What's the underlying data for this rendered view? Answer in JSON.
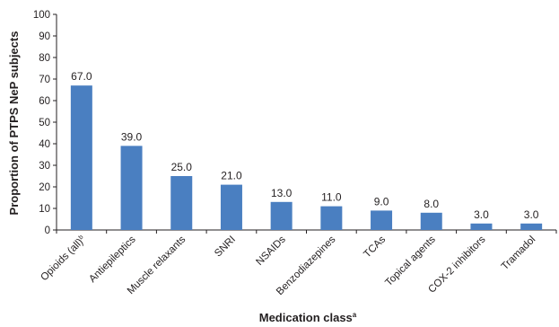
{
  "chart_data": {
    "type": "bar",
    "title": "",
    "xlabel": "Medication class",
    "xlabel_sup": "a",
    "ylabel": "Proportion of PTPS NeP subjects",
    "ylim": [
      0,
      100
    ],
    "yticks": [
      0,
      10,
      20,
      30,
      40,
      50,
      60,
      70,
      80,
      90,
      100
    ],
    "grid": false,
    "bar_color": "#4a7fc1",
    "categories": [
      {
        "label": "Opioids (all)",
        "sup": "b"
      },
      {
        "label": "Antiepileptics",
        "sup": ""
      },
      {
        "label": "Muscle relaxants",
        "sup": ""
      },
      {
        "label": "SNRI",
        "sup": ""
      },
      {
        "label": "NSAIDs",
        "sup": ""
      },
      {
        "label": "Benzodiazepines",
        "sup": ""
      },
      {
        "label": "TCAs",
        "sup": ""
      },
      {
        "label": "Topical agents",
        "sup": ""
      },
      {
        "label": "COX-2 inhibitors",
        "sup": ""
      },
      {
        "label": "Tramadol",
        "sup": ""
      }
    ],
    "values": [
      67.0,
      39.0,
      25.0,
      21.0,
      13.0,
      11.0,
      9.0,
      8.0,
      3.0,
      3.0
    ],
    "value_labels": [
      "67.0",
      "39.0",
      "25.0",
      "21.0",
      "13.0",
      "11.0",
      "9.0",
      "8.0",
      "3.0",
      "3.0"
    ]
  }
}
